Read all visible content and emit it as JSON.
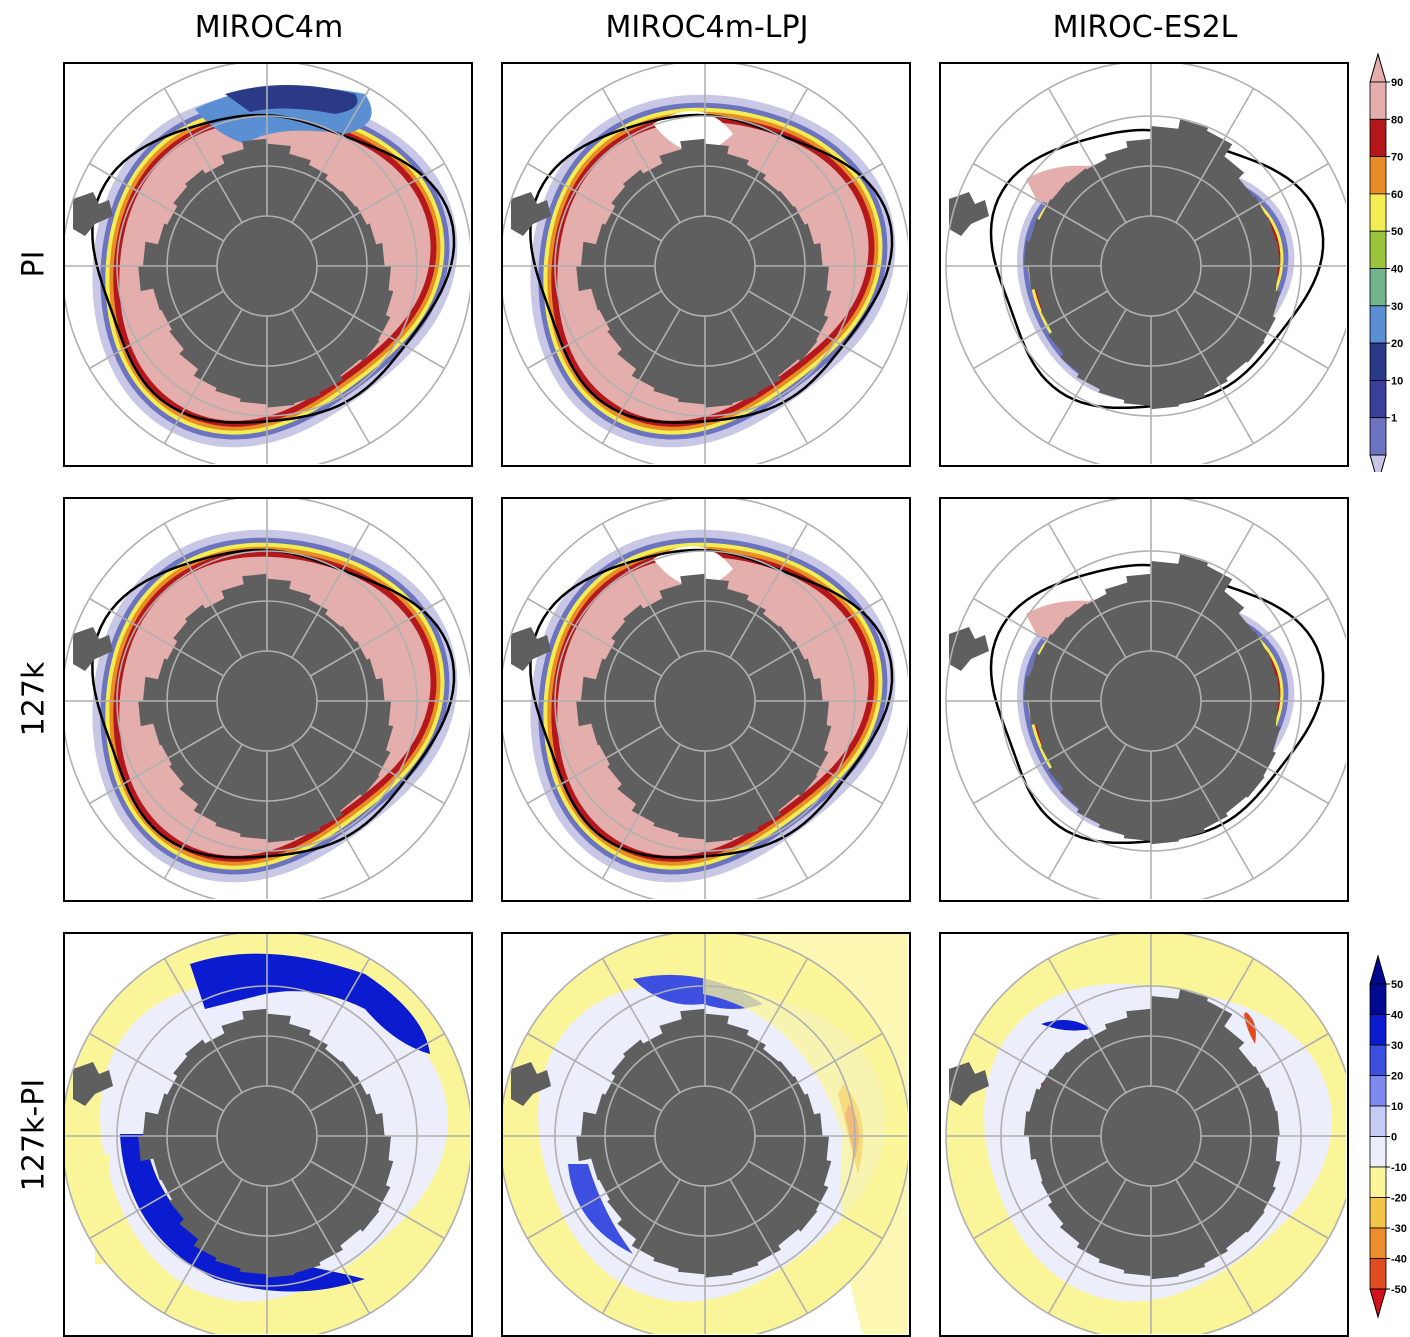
{
  "columns": [
    "MIROC4m",
    "MIROC4m-LPJ",
    "MIROC-ES2L"
  ],
  "rows": [
    "PI",
    "127k",
    "127k-PI"
  ],
  "colorbar_concentration": {
    "labels": [
      "90",
      "80",
      "70",
      "60",
      "50",
      "40",
      "30",
      "20",
      "10",
      "1"
    ],
    "colors": [
      "#e3aeab",
      "#b5181c",
      "#e88c25",
      "#f2ee52",
      "#9cc43c",
      "#72b48c",
      "#5b8fd3",
      "#2b3a87",
      "#3b3f9a",
      "#6c73bf",
      "#c8c8e6"
    ]
  },
  "colorbar_difference": {
    "labels": [
      "50",
      "40",
      "30",
      "20",
      "10",
      "0",
      "-10",
      "-20",
      "-30",
      "-40",
      "-50"
    ],
    "colors": [
      "#00098f",
      "#0a1bd0",
      "#3d4fe0",
      "#7f8af0",
      "#c6cbf6",
      "#eceefb",
      "#fbf59a",
      "#f3c64a",
      "#ee8d2c",
      "#e24a20",
      "#d4111b"
    ]
  },
  "map_colors": {
    "land": "#5f5f5f",
    "grid": "#b0b0b0",
    "observed_edge": "#000000",
    "ice_high": "#e3aeab",
    "ice_edge_red": "#b5181c",
    "low_fill": "#fbf59a",
    "neutral": "#eceefb"
  }
}
